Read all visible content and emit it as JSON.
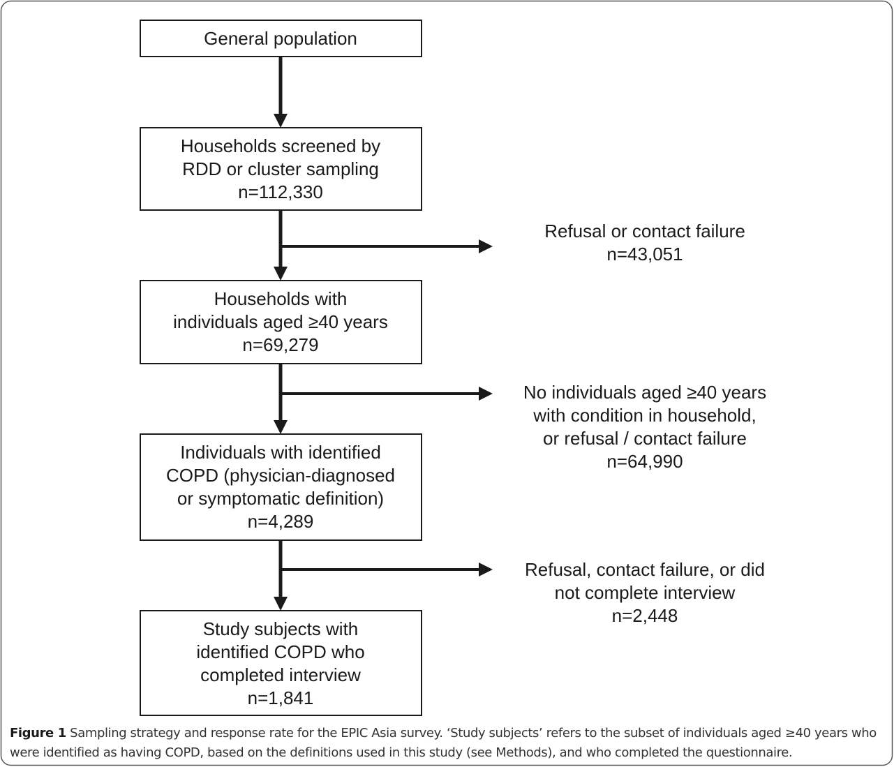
{
  "nodes": [
    {
      "lines": [
        "General population"
      ]
    },
    {
      "lines": [
        "Households screened by",
        "RDD or cluster sampling",
        "n=112,330"
      ]
    },
    {
      "lines": [
        "Households with",
        "individuals aged ≥40 years",
        "n=69,279"
      ]
    },
    {
      "lines": [
        "Individuals with identified",
        "COPD (physician-diagnosed",
        "or symptomatic definition)",
        "n=4,289"
      ]
    },
    {
      "lines": [
        "Study subjects with",
        "identified COPD who",
        "completed interview",
        "n=1,841"
      ]
    }
  ],
  "exclusions": [
    {
      "lines": [
        "Refusal or contact failure",
        "n=43,051"
      ]
    },
    {
      "lines": [
        "No individuals aged ≥40 years",
        "with condition in household,",
        "or refusal / contact failure",
        "n=64,990"
      ]
    },
    {
      "lines": [
        "Refusal, contact failure, or did",
        "not complete interview",
        "n=2,448"
      ]
    }
  ],
  "caption": {
    "label": "Figure 1",
    "text": "Sampling strategy and response rate for the EPIC Asia survey. ‘Study subjects’ refers to the subset of individuals aged ≥40 years who were identified as having COPD, based on the definitions used in this study (see Methods), and who completed the questionnaire."
  }
}
